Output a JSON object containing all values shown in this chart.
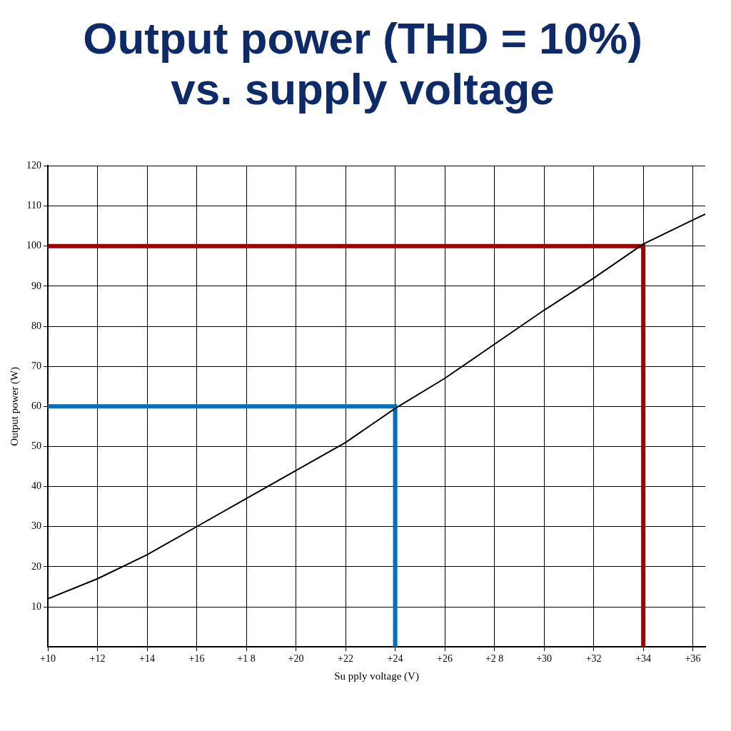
{
  "chart_data": {
    "type": "line",
    "title": "Output power (THD = 10%) vs. supply voltage",
    "xlabel": "Su pply voltage (V)",
    "ylabel": "Output power (W)",
    "xlim": [
      10,
      36.5
    ],
    "ylim": [
      0,
      120
    ],
    "xticks": [
      {
        "value": 10,
        "label": "+10"
      },
      {
        "value": 12,
        "label": "+12"
      },
      {
        "value": 14,
        "label": "+14"
      },
      {
        "value": 16,
        "label": "+16"
      },
      {
        "value": 18,
        "label": "+1 8"
      },
      {
        "value": 20,
        "label": "+20"
      },
      {
        "value": 22,
        "label": "+22"
      },
      {
        "value": 24,
        "label": "+24"
      },
      {
        "value": 26,
        "label": "+26"
      },
      {
        "value": 28,
        "label": "+2 8"
      },
      {
        "value": 30,
        "label": "+30"
      },
      {
        "value": 32,
        "label": "+32"
      },
      {
        "value": 34,
        "label": "+34"
      },
      {
        "value": 36,
        "label": "+36"
      }
    ],
    "yticks": [
      10,
      20,
      30,
      40,
      50,
      60,
      70,
      80,
      90,
      100,
      110,
      120
    ],
    "grid": true,
    "marker": "none",
    "line_style": "solid",
    "legend": false,
    "series": [
      {
        "color": "#000000",
        "x": [
          10,
          12,
          14,
          16,
          18,
          20,
          22,
          24,
          26,
          28,
          30,
          32,
          34,
          36,
          36.5
        ],
        "values": [
          12,
          17,
          23,
          30,
          37,
          44,
          51,
          59.5,
          67,
          75.5,
          84,
          92,
          100.5,
          106.5,
          108
        ]
      },
      {
        "color": "#0070c0",
        "x": [
          10,
          24,
          24
        ],
        "values": [
          60,
          60,
          0
        ]
      },
      {
        "color": "#a00000",
        "x": [
          10,
          34,
          34
        ],
        "values": [
          100,
          100,
          0
        ]
      }
    ]
  }
}
